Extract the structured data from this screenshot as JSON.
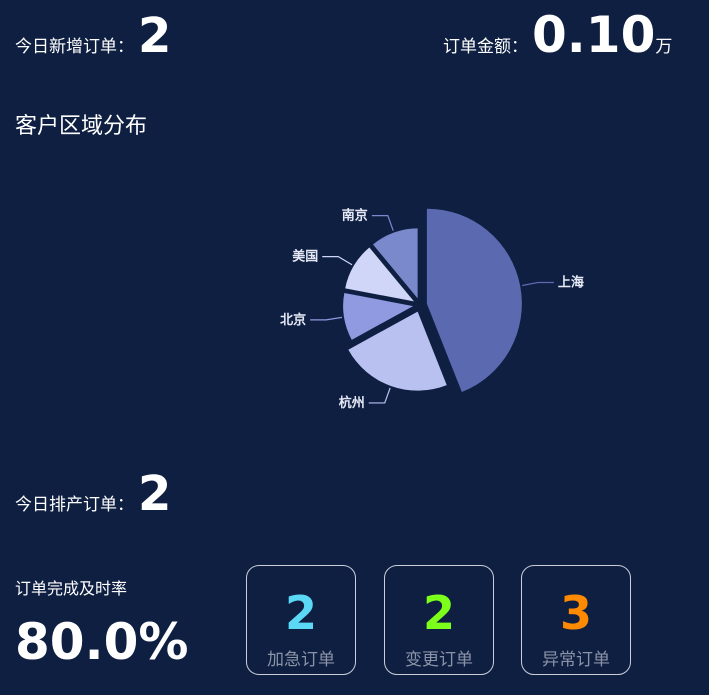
{
  "stats": {
    "new_orders_label": "今日新增订单：",
    "new_orders_value": "2",
    "amount_label": "订单金额：",
    "amount_value": "0.10",
    "amount_unit": "万",
    "production_label": "今日排产订单：",
    "production_value": "2"
  },
  "region": {
    "title": "客户区域分布"
  },
  "chart_data": {
    "type": "pie",
    "categories": [
      "上海",
      "杭州",
      "北京",
      "美国",
      "南京"
    ],
    "values": [
      44,
      23,
      11,
      11,
      11
    ],
    "colors": [
      "#5b6ab0",
      "#b8c1f0",
      "#8f9ae0",
      "#cfd6f7",
      "#7a88cc"
    ],
    "legend": "none",
    "labels": "outside"
  },
  "completion": {
    "label": "订单完成及时率",
    "value": "80.0%"
  },
  "cards": [
    {
      "value": "2",
      "label": "加急订单",
      "color": "#5bd8f5"
    },
    {
      "value": "2",
      "label": "变更订单",
      "color": "#7cff1a"
    },
    {
      "value": "3",
      "label": "异常订单",
      "color": "#ff8a00"
    }
  ]
}
